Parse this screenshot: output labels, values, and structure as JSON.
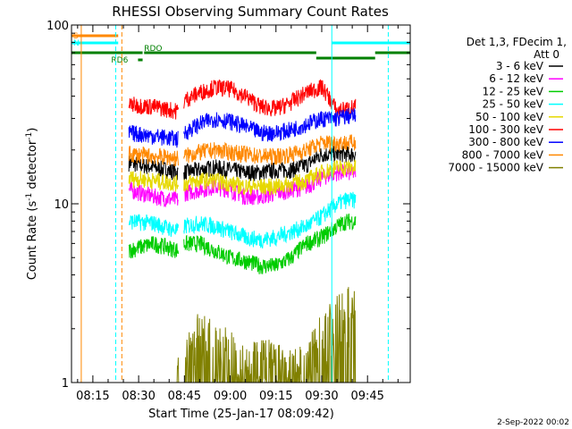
{
  "chart_data": {
    "type": "line",
    "title": "RHESSI Observing Summary Count Rates",
    "xlabel": "Start Time (25-Jan-17 08:09:42)",
    "ylabel_main": "Count Rate (s",
    "ylabel_sup1": "-1",
    "ylabel_mid": " detector",
    "ylabel_sup2": "-1",
    "ylabel_end": ")",
    "yscale": "log",
    "ylim": [
      1,
      100
    ],
    "xlim_min": [
      488,
      599
    ],
    "x_ticks_min": [
      495,
      510,
      525,
      540,
      555,
      570,
      585
    ],
    "x_tick_labels": [
      "08:15",
      "08:30",
      "08:45",
      "09:00",
      "09:15",
      "09:30",
      "09:45"
    ],
    "y_ticks": [
      1,
      10,
      100
    ],
    "y_tick_labels": [
      "1",
      "10",
      "100"
    ],
    "legend_header": [
      "Det 1,3, FDecim 1,",
      "Att 0"
    ],
    "legend_position": "right",
    "data_start_min": 506.8,
    "data_gap_min": [
      523.1,
      524.7
    ],
    "data_end_min": 581.2,
    "series": [
      {
        "name": "3 - 6 keV",
        "color": "#000000",
        "x": [
          506.8,
          515,
          523,
          525,
          530,
          535,
          540,
          545,
          550,
          555,
          560,
          565,
          570,
          575,
          578,
          581.2
        ],
        "y": [
          17,
          16,
          15,
          15,
          15.5,
          16,
          15.5,
          15,
          15,
          15.5,
          15.5,
          16.5,
          19,
          19,
          19,
          19
        ]
      },
      {
        "name": "6 - 12 keV",
        "color": "#ff00ff",
        "x": [
          506.8,
          515,
          523,
          525,
          530,
          535,
          540,
          545,
          550,
          555,
          560,
          565,
          570,
          575,
          578,
          581.2
        ],
        "y": [
          12,
          11,
          10.5,
          11.5,
          12,
          12.5,
          12,
          11,
          11,
          11.5,
          12,
          12.5,
          14,
          15,
          15,
          15
        ]
      },
      {
        "name": "12 - 25 keV",
        "color": "#00cc00",
        "x": [
          506.8,
          515,
          523,
          525,
          530,
          535,
          540,
          545,
          550,
          555,
          560,
          565,
          570,
          575,
          578,
          581.2
        ],
        "y": [
          5.5,
          6,
          5.5,
          6,
          6,
          5.5,
          5,
          4.8,
          4.5,
          4.5,
          5,
          6,
          6.5,
          7.5,
          8,
          8
        ]
      },
      {
        "name": "25 - 50 keV",
        "color": "#00ffff",
        "x": [
          506.8,
          515,
          523,
          525,
          530,
          535,
          540,
          545,
          550,
          555,
          560,
          565,
          570,
          575,
          578,
          581.2
        ],
        "y": [
          8,
          7.8,
          7,
          7.5,
          7.8,
          7.5,
          7,
          6.5,
          6.3,
          6.5,
          7,
          7.5,
          8.5,
          10,
          10.5,
          10.5
        ]
      },
      {
        "name": "50 - 100 keV",
        "color": "#e6d800",
        "x": [
          506.8,
          515,
          523,
          525,
          530,
          535,
          540,
          545,
          550,
          555,
          560,
          565,
          570,
          575,
          578,
          581.2
        ],
        "y": [
          14,
          13.5,
          13,
          13,
          13.5,
          13.5,
          13,
          12.5,
          12.5,
          12.5,
          13,
          13.5,
          15,
          16,
          16,
          16
        ]
      },
      {
        "name": "100 - 300 keV",
        "color": "#ff0000",
        "x": [
          506.8,
          515,
          523,
          525,
          530,
          535,
          540,
          545,
          550,
          555,
          560,
          565,
          570,
          575,
          578,
          581.2
        ],
        "y": [
          36,
          35,
          33,
          38,
          42,
          45,
          44,
          40,
          35,
          34,
          37,
          42,
          45,
          33,
          34,
          35
        ]
      },
      {
        "name": "300 - 800 keV",
        "color": "#0000ff",
        "x": [
          506.8,
          515,
          523,
          525,
          530,
          535,
          540,
          545,
          550,
          555,
          560,
          565,
          570,
          575,
          578,
          581.2
        ],
        "y": [
          25,
          24,
          23,
          25,
          28,
          30,
          29,
          27,
          25,
          25,
          26,
          28,
          30,
          30,
          31,
          31
        ]
      },
      {
        "name": "800 - 7000 keV",
        "color": "#ff8800",
        "x": [
          506.8,
          515,
          523,
          525,
          530,
          535,
          540,
          545,
          550,
          555,
          560,
          565,
          570,
          575,
          578,
          581.2
        ],
        "y": [
          19,
          18.5,
          18,
          18.5,
          19.5,
          20,
          19.5,
          19,
          18.5,
          18.5,
          19,
          20,
          22,
          22,
          22,
          22
        ]
      },
      {
        "name": "7000 - 15000 keV",
        "color": "#808000",
        "x": [
          522,
          525,
          530,
          535,
          540,
          545,
          550,
          555,
          560,
          565,
          568,
          570,
          575,
          578,
          581.2
        ],
        "y": [
          1,
          1.3,
          1.8,
          1.6,
          1.4,
          1.2,
          1.3,
          1.2,
          1.1,
          1.2,
          1.5,
          1.8,
          2.2,
          2.5,
          2.5
        ]
      }
    ]
  },
  "flags": [
    {
      "name": "S",
      "color": "#ff8800",
      "x_start": 488,
      "x_end": 503.3
    },
    {
      "name": "N",
      "color": "#00ffff",
      "x_start": 488,
      "x_end": 503.3
    },
    {
      "name": "RD6",
      "color": "#008000",
      "x_start": 509.8,
      "x_end": 511.3
    },
    {
      "name": "RDO",
      "color": "#008000",
      "x_start": 511.8,
      "x_end": 568.2
    },
    {
      "name": "",
      "color": "#008000",
      "x_start": 488,
      "x_end": 511.3
    },
    {
      "name": "",
      "color": "#008000",
      "x_start": 568.2,
      "x_end": 587.5
    },
    {
      "name": "",
      "color": "#008000",
      "x_start": 587.5,
      "x_end": 599
    },
    {
      "name": "",
      "color": "#00ffff",
      "x_start": 573.3,
      "x_end": 599
    }
  ],
  "vlines": [
    {
      "x": 488,
      "color": "#00ffff",
      "style": "solid"
    },
    {
      "x": 491.2,
      "color": "#ff8800",
      "style": "solid"
    },
    {
      "x": 502.5,
      "color": "#00ffff",
      "style": "dashed"
    },
    {
      "x": 504.5,
      "color": "#ff8800",
      "style": "dashed"
    },
    {
      "x": 573.3,
      "color": "#00ffff",
      "style": "solid"
    },
    {
      "x": 591.8,
      "color": "#00ffff",
      "style": "dashed"
    }
  ],
  "footer_date": "2-Sep-2022 00:02",
  "colors": {
    "background": "#ffffff",
    "axis": "#000000"
  }
}
